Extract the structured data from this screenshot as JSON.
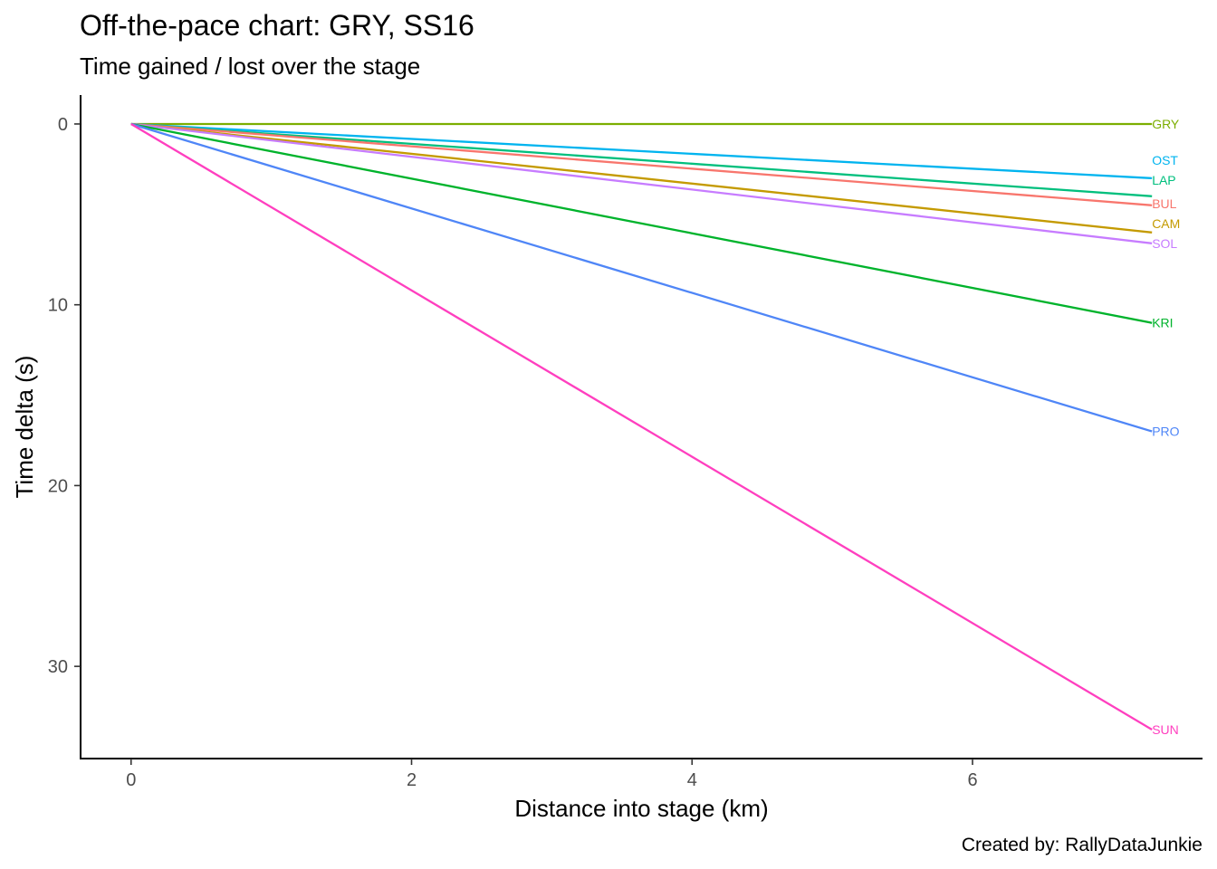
{
  "header": {
    "title": "Off-the-pace chart: GRY, SS16",
    "subtitle": "Time gained / lost over the stage"
  },
  "caption": "Created by: RallyDataJunkie",
  "chart_data": {
    "type": "line",
    "title": "Off-the-pace chart: GRY, SS16",
    "subtitle": "Time gained / lost over the stage",
    "xlabel": "Distance into stage (km)",
    "ylabel": "Time delta (s)",
    "xlim": [
      -0.36,
      7.64
    ],
    "ylim": [
      -1.6,
      35.1
    ],
    "y_reversed": true,
    "x_ticks": [
      0,
      2,
      4,
      6
    ],
    "y_ticks": [
      0,
      10,
      20,
      30
    ],
    "grid": false,
    "legend": "none (direct labels at line ends)",
    "series": [
      {
        "name": "GRY",
        "color": "#7CAE00",
        "x": [
          0,
          7.28
        ],
        "y": [
          0,
          0
        ],
        "label_y": 0
      },
      {
        "name": "OST",
        "color": "#00B4EF",
        "x": [
          0,
          7.28
        ],
        "y": [
          0,
          3.0
        ],
        "label_y": 2.0
      },
      {
        "name": "LAP",
        "color": "#00BF7D",
        "x": [
          0,
          7.28
        ],
        "y": [
          0,
          4.0
        ],
        "label_y": 3.1
      },
      {
        "name": "BUL",
        "color": "#F8766D",
        "x": [
          0,
          7.28
        ],
        "y": [
          0,
          4.5
        ],
        "label_y": 4.4
      },
      {
        "name": "CAM",
        "color": "#C49A00",
        "x": [
          0,
          7.28
        ],
        "y": [
          0,
          6.0
        ],
        "label_y": 5.5
      },
      {
        "name": "SOL",
        "color": "#C77CFF",
        "x": [
          0,
          7.28
        ],
        "y": [
          0,
          6.6
        ],
        "label_y": 6.6
      },
      {
        "name": "KRI",
        "color": "#00B32C",
        "x": [
          0,
          7.28
        ],
        "y": [
          0,
          11.0
        ],
        "label_y": 11.0
      },
      {
        "name": "PRO",
        "color": "#4F86F7",
        "x": [
          0,
          7.28
        ],
        "y": [
          0,
          17.0
        ],
        "label_y": 17.0
      },
      {
        "name": "SUN",
        "color": "#FF3FBF",
        "x": [
          0,
          7.28
        ],
        "y": [
          0,
          33.5
        ],
        "label_y": 33.5
      }
    ]
  }
}
